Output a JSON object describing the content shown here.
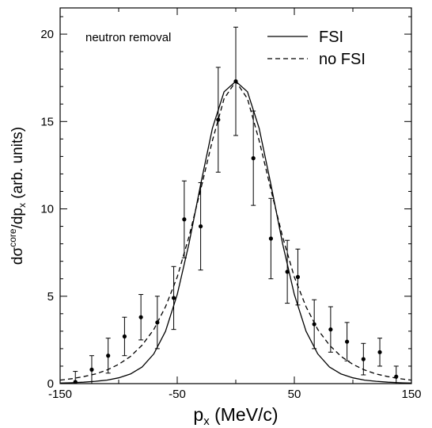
{
  "chart_data": {
    "type": "scatter",
    "annotation": "neutron removal",
    "xlabel": {
      "main": "p",
      "sub": "x",
      "rest": " (MeV/c)"
    },
    "ylabel": {
      "a": "dσ",
      "sup": "core",
      "b": "/dp",
      "sub": "x",
      "c": " (arb. units)"
    },
    "xlim": [
      -150,
      150
    ],
    "ylim": [
      0,
      21.5
    ],
    "x_ticks": [
      -150,
      -50,
      50,
      150
    ],
    "x_tick_labels": [
      "-150",
      "-50",
      "50",
      "150"
    ],
    "x_minor_ticks": [
      -100,
      0,
      100
    ],
    "y_ticks": [
      0,
      5,
      10,
      15,
      20
    ],
    "y_tick_labels": [
      "0",
      "5",
      "10",
      "15",
      "20"
    ],
    "legend": [
      {
        "label": "FSI",
        "style": "solid"
      },
      {
        "label": "no FSI",
        "style": "dashed"
      }
    ],
    "series": [
      {
        "name": "FSI",
        "style": "solid",
        "x": [
          -150,
          -140,
          -130,
          -120,
          -110,
          -100,
          -90,
          -80,
          -70,
          -60,
          -50,
          -40,
          -30,
          -20,
          -10,
          0,
          10,
          20,
          30,
          40,
          50,
          60,
          70,
          80,
          90,
          100,
          110,
          120,
          130,
          140,
          150
        ],
        "y": [
          0.03,
          0.05,
          0.08,
          0.13,
          0.2,
          0.33,
          0.55,
          0.95,
          1.7,
          3.0,
          5.1,
          8.0,
          11.4,
          14.6,
          16.7,
          17.3,
          16.7,
          14.6,
          11.4,
          8.0,
          5.1,
          3.0,
          1.7,
          0.95,
          0.55,
          0.33,
          0.2,
          0.13,
          0.08,
          0.05,
          0.03
        ]
      },
      {
        "name": "no FSI",
        "style": "dashed",
        "x": [
          -150,
          -140,
          -130,
          -120,
          -110,
          -100,
          -90,
          -80,
          -70,
          -60,
          -50,
          -40,
          -30,
          -20,
          -10,
          0,
          10,
          20,
          30,
          40,
          50,
          60,
          70,
          80,
          90,
          100,
          110,
          120,
          130,
          140,
          150
        ],
        "y": [
          0.2,
          0.28,
          0.4,
          0.55,
          0.78,
          1.1,
          1.55,
          2.2,
          3.1,
          4.4,
          6.1,
          8.4,
          11.1,
          13.9,
          16.3,
          17.3,
          16.3,
          13.9,
          11.1,
          8.4,
          6.1,
          4.4,
          3.1,
          2.2,
          1.55,
          1.1,
          0.78,
          0.55,
          0.4,
          0.28,
          0.2
        ]
      },
      {
        "name": "data",
        "style": "points",
        "x": [
          -137,
          -123,
          -109,
          -95,
          -81,
          -67,
          -53,
          -44,
          -30,
          -15,
          0,
          15,
          30,
          44,
          53,
          67,
          81,
          95,
          109,
          123,
          137
        ],
        "y": [
          0.1,
          0.8,
          1.6,
          2.7,
          3.8,
          3.5,
          4.9,
          9.4,
          9.0,
          15.1,
          17.3,
          12.9,
          8.3,
          6.4,
          6.1,
          3.4,
          3.1,
          2.4,
          1.4,
          1.8,
          0.4
        ],
        "err": [
          0.6,
          0.8,
          1.0,
          1.1,
          1.3,
          1.5,
          1.8,
          2.2,
          2.5,
          3.0,
          3.1,
          2.7,
          2.3,
          1.8,
          1.6,
          1.4,
          1.3,
          1.1,
          0.9,
          0.8,
          0.6
        ]
      }
    ]
  }
}
